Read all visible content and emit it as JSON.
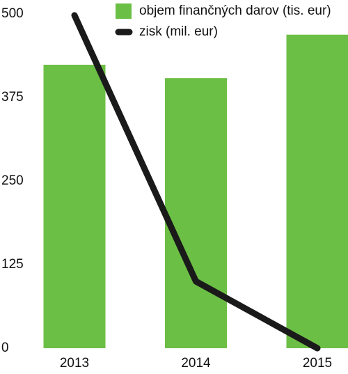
{
  "chart_data": {
    "type": "bar",
    "categories": [
      "2013",
      "2014",
      "2015"
    ],
    "series": [
      {
        "name": "objem finančných darov (tis. eur)",
        "type": "bar",
        "color": "#6cbf45",
        "values": [
          424,
          404,
          469
        ]
      },
      {
        "name": "zisk (mil. eur)",
        "type": "line",
        "color": "#1a1a1a",
        "values": [
          498,
          100,
          0
        ]
      }
    ],
    "ylim": [
      0,
      500
    ],
    "yticks": [
      0,
      125,
      250,
      375,
      500
    ],
    "grid": false
  }
}
